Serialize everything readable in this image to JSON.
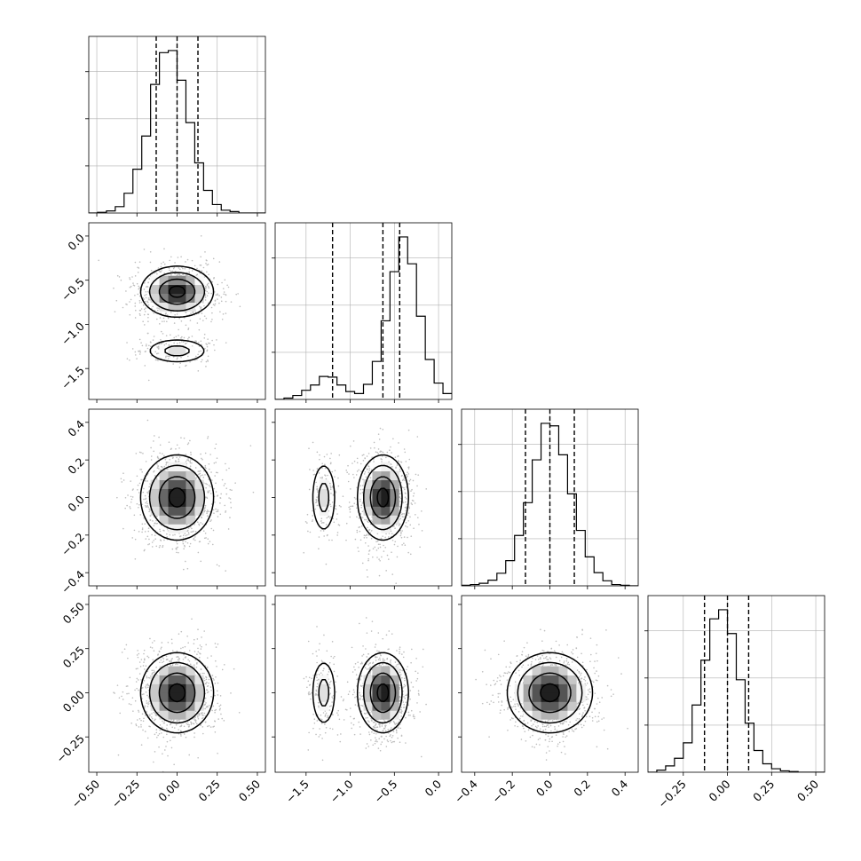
{
  "chart_data": {
    "type": "corner",
    "n_params": 4,
    "colors": {
      "line": "#000000",
      "grid": "#b0b0b0",
      "scatter": "#bdbdbd"
    },
    "grid": true,
    "params": [
      {
        "range": [
          -0.55,
          0.55
        ],
        "ticks": [
          -0.5,
          -0.25,
          0.0,
          0.25,
          0.5
        ],
        "tick_labels": [
          "−0.50",
          "−0.25",
          "0.00",
          "0.25",
          "0.50"
        ],
        "quantiles": [
          -0.13,
          0.0,
          0.13
        ]
      },
      {
        "range": [
          -1.85,
          0.15
        ],
        "ticks": [
          -1.5,
          -1.0,
          -0.5,
          0.0
        ],
        "tick_labels": [
          "−1.5",
          "−1.0",
          "−0.5",
          "0.0"
        ],
        "quantiles": [
          -1.2,
          -0.63,
          -0.44
        ]
      },
      {
        "range": [
          -0.47,
          0.47
        ],
        "ticks": [
          -0.4,
          -0.2,
          0.0,
          0.2,
          0.4
        ],
        "tick_labels": [
          "−0.4",
          "−0.2",
          "0.0",
          "0.2",
          "0.4"
        ],
        "quantiles": [
          -0.13,
          0.0,
          0.13
        ]
      },
      {
        "range": [
          -0.45,
          0.55
        ],
        "ticks": [
          -0.25,
          0.0,
          0.25,
          0.5
        ],
        "tick_labels": [
          "−0.25",
          "0.00",
          "0.25",
          "0.50"
        ],
        "quantiles": [
          -0.13,
          0.0,
          0.12
        ]
      }
    ],
    "histograms": [
      {
        "param": 0,
        "bins": [
          -0.55,
          0.55
        ],
        "counts": [
          0,
          1,
          3,
          9,
          28,
          62,
          109,
          182,
          227,
          230,
          188,
          128,
          71,
          32,
          12,
          4,
          2,
          0,
          0,
          0
        ]
      },
      {
        "param": 1,
        "bins": [
          -1.85,
          0.15
        ],
        "counts": [
          0,
          2,
          6,
          14,
          22,
          35,
          34,
          22,
          12,
          9,
          23,
          58,
          120,
          195,
          248,
          207,
          127,
          61,
          25,
          9
        ]
      },
      {
        "param": 2,
        "bins": [
          -0.47,
          0.47
        ],
        "counts": [
          1,
          2,
          4,
          9,
          20,
          40,
          80,
          132,
          200,
          258,
          254,
          208,
          146,
          88,
          46,
          21,
          8,
          2,
          1,
          0
        ]
      },
      {
        "param": 3,
        "bins": [
          -0.45,
          0.55
        ],
        "counts": [
          0,
          3,
          9,
          20,
          42,
          96,
          160,
          219,
          232,
          198,
          132,
          70,
          31,
          12,
          5,
          2,
          1,
          0,
          0,
          0
        ]
      }
    ],
    "components": [
      {
        "weight": 0.82,
        "mean": [
          0.0,
          -0.63,
          0.0,
          0.0
        ],
        "sd": [
          0.11,
          0.14,
          0.11,
          0.11
        ]
      },
      {
        "weight": 0.18,
        "mean": [
          0.0,
          -1.3,
          0.0,
          0.0
        ],
        "sd": [
          0.11,
          0.08,
          0.11,
          0.11
        ]
      }
    ],
    "contour_levels": [
      0.9,
      0.6,
      0.3,
      0.12
    ]
  }
}
